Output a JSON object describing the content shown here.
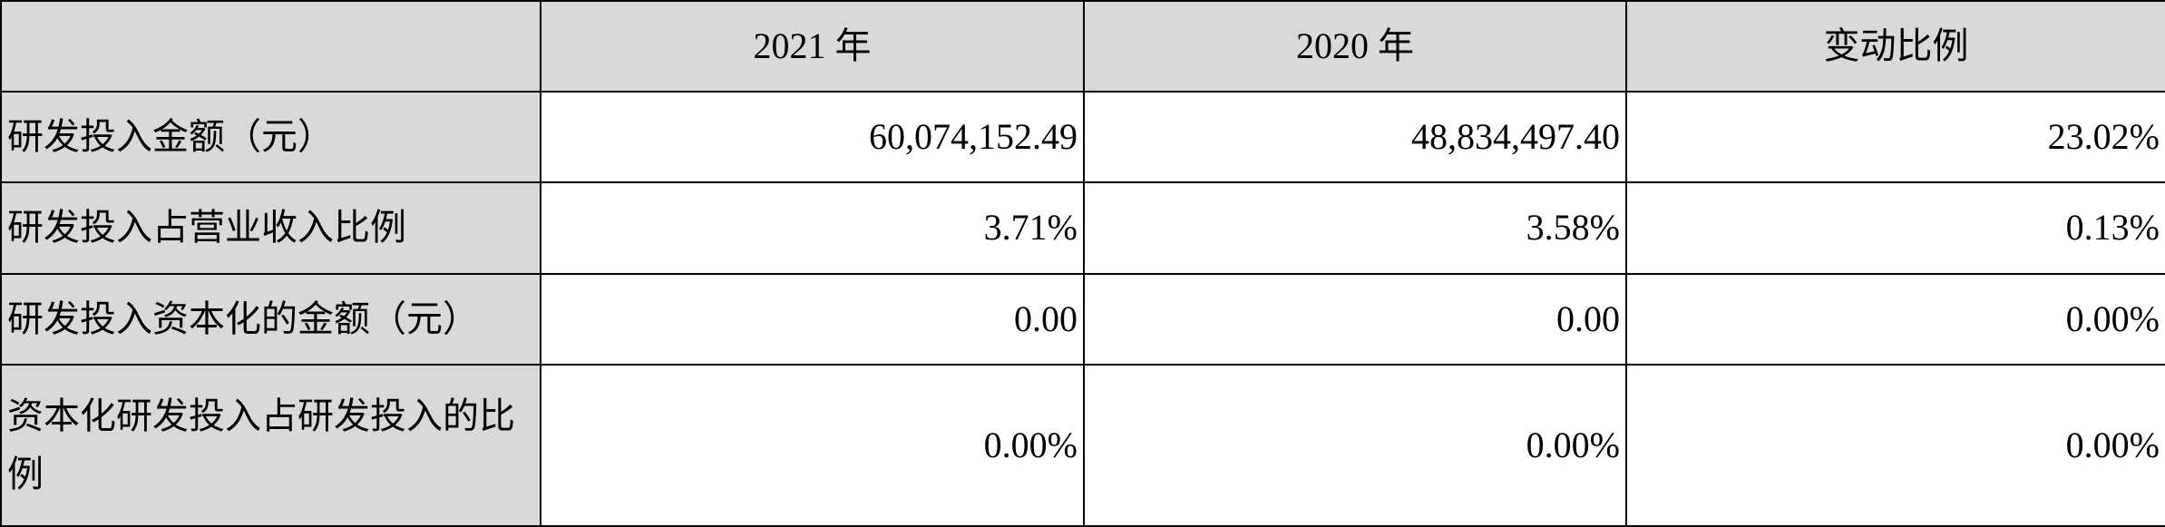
{
  "table": {
    "headers": [
      "",
      "2021 年",
      "2020 年",
      "变动比例"
    ],
    "rows": [
      {
        "label": "研发投入金额（元）",
        "values": [
          "60,074,152.49",
          "48,834,497.40",
          "23.02%"
        ]
      },
      {
        "label": "研发投入占营业收入比例",
        "values": [
          "3.71%",
          "3.58%",
          "0.13%"
        ]
      },
      {
        "label": "研发投入资本化的金额（元）",
        "values": [
          "0.00",
          "0.00",
          "0.00%"
        ]
      },
      {
        "label": "资本化研发投入占研发投入的比例",
        "values": [
          "0.00%",
          "0.00%",
          "0.00%"
        ]
      }
    ]
  },
  "colors": {
    "header_bg": "#d9d9d9",
    "border": "#000000"
  }
}
